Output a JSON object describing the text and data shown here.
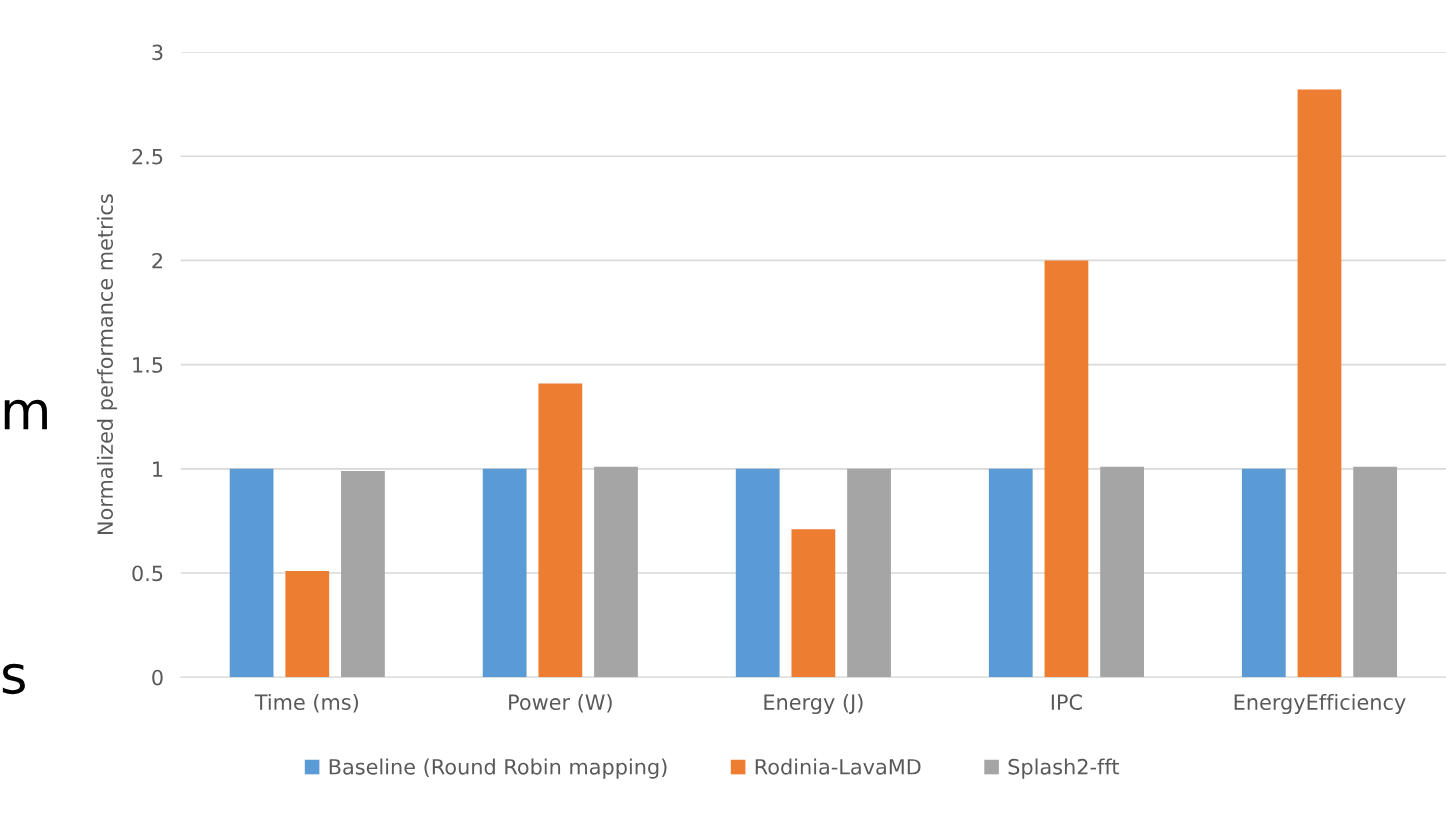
{
  "chart_data": {
    "type": "bar",
    "ylabel": "Normalized performance metrics",
    "categories": [
      "Time (ms)",
      "Power (W)",
      "Energy (J)",
      "IPC",
      "EnergyEfficiency"
    ],
    "series": [
      {
        "name": "Baseline (Round Robin mapping)",
        "color": "#5b9bd5",
        "values": [
          1,
          1,
          1,
          1,
          1
        ]
      },
      {
        "name": "Rodinia-LavaMD",
        "color": "#ed7d31",
        "values": [
          0.51,
          1.41,
          0.71,
          2.0,
          2.82
        ]
      },
      {
        "name": "Splash2-fft",
        "color": "#a5a5a5",
        "values": [
          0.99,
          1.01,
          1.0,
          1.01,
          1.01
        ]
      }
    ],
    "ylim": [
      0,
      3
    ],
    "yticks": [
      0,
      0.5,
      1,
      1.5,
      2,
      2.5,
      3
    ],
    "grid": "y",
    "legend": "bottom",
    "annotations": [
      "m",
      "s"
    ]
  }
}
